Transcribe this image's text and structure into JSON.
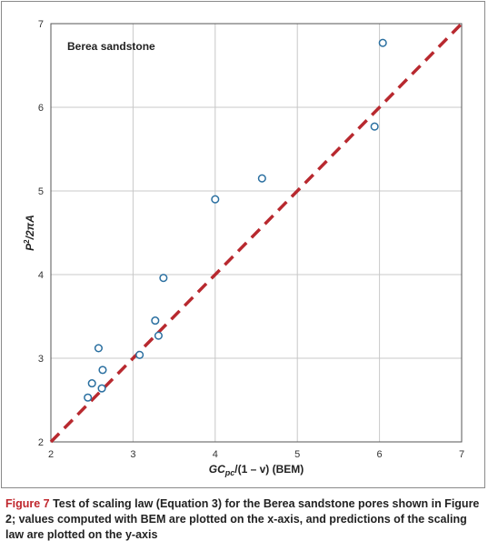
{
  "chart_data": {
    "type": "scatter",
    "annotation": "Berea sandstone",
    "xlabel_parts": [
      "GC",
      "pc",
      "/(1 – v) (BEM)"
    ],
    "ylabel_parts": [
      "P",
      "2",
      "/2πA"
    ],
    "xlim": [
      2,
      7
    ],
    "ylim": [
      2,
      7
    ],
    "xticks": [
      2,
      3,
      4,
      5,
      6,
      7
    ],
    "yticks": [
      2,
      3,
      4,
      5,
      6,
      7
    ],
    "grid": true,
    "points": [
      {
        "x": 2.45,
        "y": 2.53
      },
      {
        "x": 2.5,
        "y": 2.7
      },
      {
        "x": 2.58,
        "y": 3.12
      },
      {
        "x": 2.62,
        "y": 2.64
      },
      {
        "x": 2.63,
        "y": 2.86
      },
      {
        "x": 3.08,
        "y": 3.04
      },
      {
        "x": 3.27,
        "y": 3.45
      },
      {
        "x": 3.31,
        "y": 3.27
      },
      {
        "x": 3.37,
        "y": 3.96
      },
      {
        "x": 4.0,
        "y": 4.9
      },
      {
        "x": 4.57,
        "y": 5.15
      },
      {
        "x": 5.94,
        "y": 5.77
      },
      {
        "x": 6.04,
        "y": 6.77
      }
    ],
    "reference_line": {
      "from": [
        2,
        2
      ],
      "to": [
        7,
        7
      ],
      "color": "#b8292f",
      "style": "dashed"
    },
    "marker_color": "#2a6fa0"
  },
  "caption": {
    "label": "Figure 7",
    "text": " Test of scaling law (Equation 3) for the Berea sandstone pores shown in Figure 2; values computed with BEM are plotted on the x-axis, and predictions of the scaling law are plotted on the y-axis"
  }
}
